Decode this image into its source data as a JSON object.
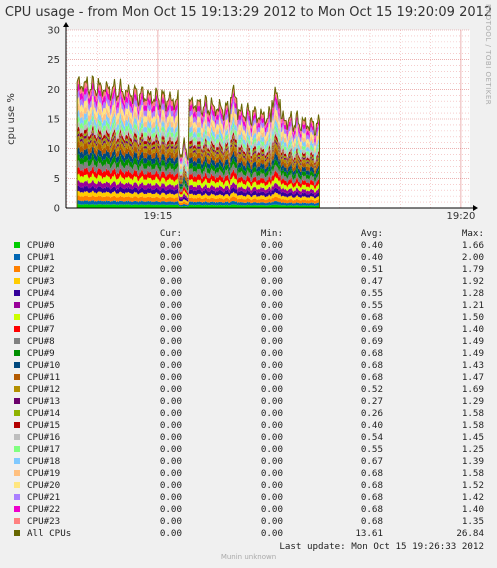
{
  "title": "CPU usage - from Mon Oct 15 19:13:29 2012 to Mon Oct 15 19:20:09 2012",
  "side_label": "RRDTOOL / TOBI OETIKER",
  "chart_data": {
    "type": "area",
    "stacked": true,
    "title": "CPU usage - from Mon Oct 15 19:13:29 2012 to Mon Oct 15 19:20:09 2012",
    "ylabel": "cpu use %",
    "xlabel": "",
    "ylim": [
      0,
      30
    ],
    "yticks": [
      0,
      5,
      10,
      15,
      20,
      25,
      30
    ],
    "x_range": [
      "19:13:29",
      "19:20:09"
    ],
    "xticks": [
      "19:15",
      "19:20"
    ],
    "data_interval": [
      "19:13:40",
      "19:17:40"
    ],
    "grid": true,
    "legend_position": "bottom",
    "headers": [
      "Cur:",
      "Min:",
      "Avg:",
      "Max:"
    ],
    "series": [
      {
        "name": "CPU#0",
        "color": "#00cc00",
        "cur": "0.00",
        "min": "0.00",
        "avg": "0.40",
        "max": "1.66"
      },
      {
        "name": "CPU#1",
        "color": "#0066b3",
        "cur": "0.00",
        "min": "0.00",
        "avg": "0.40",
        "max": "2.00"
      },
      {
        "name": "CPU#2",
        "color": "#ff8000",
        "cur": "0.00",
        "min": "0.00",
        "avg": "0.51",
        "max": "1.79"
      },
      {
        "name": "CPU#3",
        "color": "#ffcc00",
        "cur": "0.00",
        "min": "0.00",
        "avg": "0.47",
        "max": "1.92"
      },
      {
        "name": "CPU#4",
        "color": "#330099",
        "cur": "0.00",
        "min": "0.00",
        "avg": "0.55",
        "max": "1.28"
      },
      {
        "name": "CPU#5",
        "color": "#990099",
        "cur": "0.00",
        "min": "0.00",
        "avg": "0.55",
        "max": "1.21"
      },
      {
        "name": "CPU#6",
        "color": "#ccff00",
        "cur": "0.00",
        "min": "0.00",
        "avg": "0.68",
        "max": "1.50"
      },
      {
        "name": "CPU#7",
        "color": "#ff0000",
        "cur": "0.00",
        "min": "0.00",
        "avg": "0.69",
        "max": "1.40"
      },
      {
        "name": "CPU#8",
        "color": "#808080",
        "cur": "0.00",
        "min": "0.00",
        "avg": "0.69",
        "max": "1.49"
      },
      {
        "name": "CPU#9",
        "color": "#008f00",
        "cur": "0.00",
        "min": "0.00",
        "avg": "0.68",
        "max": "1.49"
      },
      {
        "name": "CPU#10",
        "color": "#00487d",
        "cur": "0.00",
        "min": "0.00",
        "avg": "0.68",
        "max": "1.43"
      },
      {
        "name": "CPU#11",
        "color": "#b35a00",
        "cur": "0.00",
        "min": "0.00",
        "avg": "0.68",
        "max": "1.47"
      },
      {
        "name": "CPU#12",
        "color": "#b38f00",
        "cur": "0.00",
        "min": "0.00",
        "avg": "0.52",
        "max": "1.69"
      },
      {
        "name": "CPU#13",
        "color": "#6b006b",
        "cur": "0.00",
        "min": "0.00",
        "avg": "0.27",
        "max": "1.29"
      },
      {
        "name": "CPU#14",
        "color": "#8fb300",
        "cur": "0.00",
        "min": "0.00",
        "avg": "0.26",
        "max": "1.58"
      },
      {
        "name": "CPU#15",
        "color": "#b30000",
        "cur": "0.00",
        "min": "0.00",
        "avg": "0.40",
        "max": "1.58"
      },
      {
        "name": "CPU#16",
        "color": "#bebebe",
        "cur": "0.00",
        "min": "0.00",
        "avg": "0.54",
        "max": "1.45"
      },
      {
        "name": "CPU#17",
        "color": "#80ff80",
        "cur": "0.00",
        "min": "0.00",
        "avg": "0.55",
        "max": "1.25"
      },
      {
        "name": "CPU#18",
        "color": "#80c9ff",
        "cur": "0.00",
        "min": "0.00",
        "avg": "0.67",
        "max": "1.39"
      },
      {
        "name": "CPU#19",
        "color": "#ffc080",
        "cur": "0.00",
        "min": "0.00",
        "avg": "0.68",
        "max": "1.58"
      },
      {
        "name": "CPU#20",
        "color": "#ffe680",
        "cur": "0.00",
        "min": "0.00",
        "avg": "0.68",
        "max": "1.52"
      },
      {
        "name": "CPU#21",
        "color": "#aa80ff",
        "cur": "0.00",
        "min": "0.00",
        "avg": "0.68",
        "max": "1.42"
      },
      {
        "name": "CPU#22",
        "color": "#ee00cc",
        "cur": "0.00",
        "min": "0.00",
        "avg": "0.68",
        "max": "1.40"
      },
      {
        "name": "CPU#23",
        "color": "#ff8080",
        "cur": "0.00",
        "min": "0.00",
        "avg": "0.68",
        "max": "1.35"
      },
      {
        "name": "All CPUs",
        "color": "#666600",
        "cur": "0.00",
        "min": "0.00",
        "avg": "13.61",
        "max": "26.84"
      }
    ]
  },
  "footer": {
    "last_update": "Last update:  Mon Oct 15 19:26:33 2012",
    "generator": "Munin unknown"
  }
}
